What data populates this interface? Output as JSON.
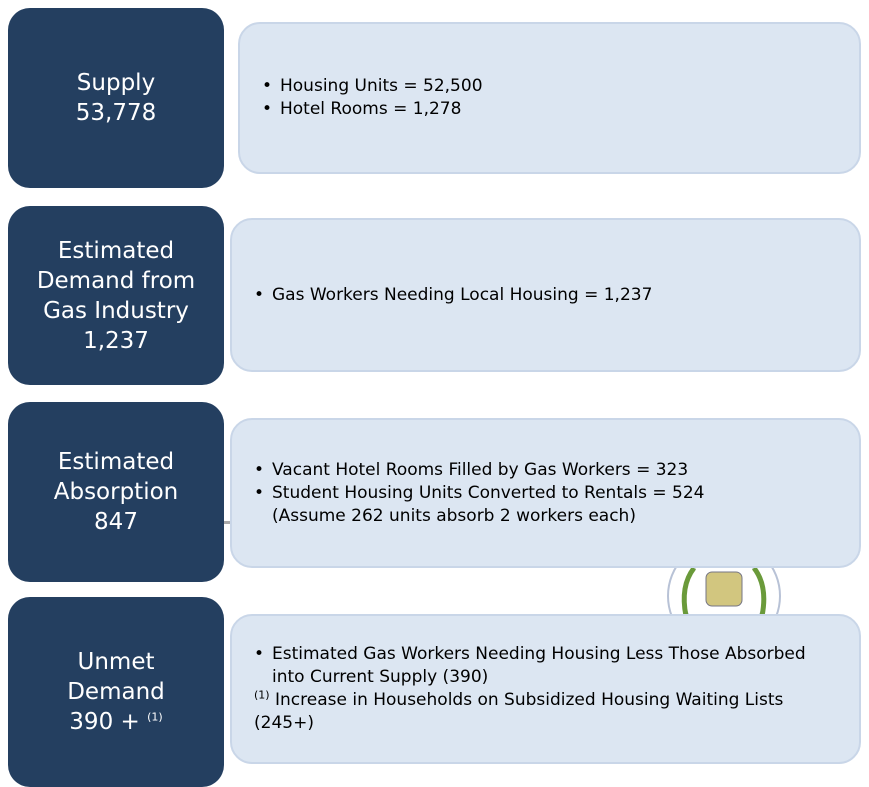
{
  "rows": [
    {
      "label": [
        "Supply",
        "53,778"
      ],
      "items": [
        {
          "text": "Housing Units = 52,500"
        },
        {
          "text": "Hotel Rooms = 1,278"
        }
      ]
    },
    {
      "label": [
        "Estimated",
        "Demand from",
        "Gas Industry",
        "1,237"
      ],
      "items": [
        {
          "text": "Gas Workers Needing Local Housing = 1,237"
        }
      ]
    },
    {
      "label": [
        "Estimated",
        "Absorption",
        "847"
      ],
      "items": [
        {
          "text": "Vacant Hotel Rooms Filled by Gas Workers = 323"
        },
        {
          "text": "Student Housing Units Converted to Rentals = 524",
          "sub": "(Assume 262 units absorb 2 workers each)"
        }
      ]
    },
    {
      "label": [
        "Unmet",
        "Demand",
        "390 + "
      ],
      "label_sup": "(1)",
      "items": [
        {
          "text": "Estimated Gas Workers Needing Housing Less Those Absorbed into Current Supply (390)"
        }
      ],
      "note": {
        "marker": "(1)",
        "text": " Increase in Households on Subsidized Housing Waiting Lists (245+)"
      }
    }
  ]
}
